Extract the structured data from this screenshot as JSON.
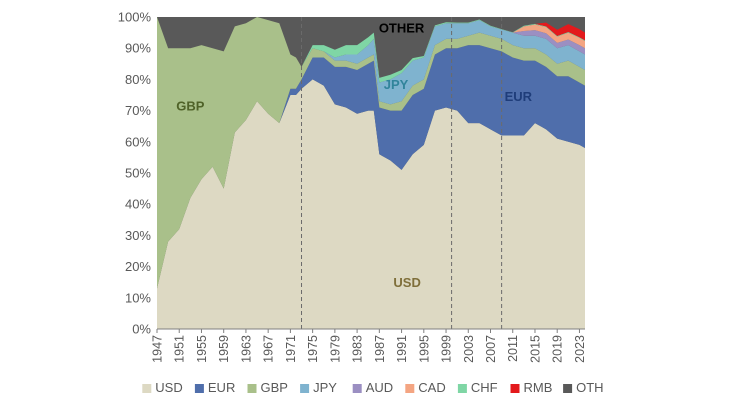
{
  "chart_data": {
    "type": "area",
    "stacked": true,
    "normalized_percent": true,
    "title": "",
    "xlabel": "",
    "ylabel": "",
    "ylim": [
      0,
      100
    ],
    "y_ticks": [
      0,
      10,
      20,
      30,
      40,
      50,
      60,
      70,
      80,
      90,
      100
    ],
    "y_tick_labels": [
      "0%",
      "10%",
      "20%",
      "30%",
      "40%",
      "50%",
      "60%",
      "70%",
      "80%",
      "90%",
      "100%"
    ],
    "x_tick_labels": [
      "1947",
      "1951",
      "1955",
      "1959",
      "1963",
      "1967",
      "1971",
      "1975",
      "1979",
      "1983",
      "1987",
      "1991",
      "1995",
      "1999",
      "2003",
      "2007",
      "2011",
      "2015",
      "2019",
      "2023"
    ],
    "xlim": [
      1947,
      2024
    ],
    "grid": false,
    "legend_position": "bottom",
    "vertical_reference_lines": [
      1973,
      2000,
      2009
    ],
    "colors": {
      "USD": "#ddd9c3",
      "EUR": "#4f6eab",
      "GBP": "#a9c08a",
      "JPY": "#7fb3cf",
      "AUD": "#9b8fc2",
      "CAD": "#f4a582",
      "CHF": "#7fd6a5",
      "RMB": "#e3191c",
      "OTH": "#595959"
    },
    "legend": [
      "USD",
      "EUR",
      "GBP",
      "JPY",
      "AUD",
      "CAD",
      "CHF",
      "RMB",
      "OTH"
    ],
    "inline_labels": [
      {
        "text": "GBP",
        "x": 1953,
        "y": 70,
        "series": "GBP",
        "color": "#4f6228"
      },
      {
        "text": "JPY",
        "x": 1990,
        "y": 77,
        "series": "JPY",
        "color": "#31849b"
      },
      {
        "text": "OTHER",
        "x": 1991,
        "y": 95,
        "series": "OTH",
        "color": "#000000"
      },
      {
        "text": "EUR",
        "x": 2012,
        "y": 73,
        "series": "EUR",
        "color": "#1f3d7a"
      },
      {
        "text": "USD",
        "x": 1992,
        "y": 13.5,
        "series": "USD",
        "color": "#7f6f3a"
      }
    ],
    "x": [
      1947,
      1949,
      1951,
      1953,
      1955,
      1957,
      1959,
      1961,
      1963,
      1965,
      1967,
      1969,
      1971,
      1972,
      1973,
      1975,
      1977,
      1979,
      1981,
      1983,
      1985,
      1986,
      1987,
      1989,
      1991,
      1993,
      1995,
      1997,
      1999,
      2001,
      2003,
      2005,
      2007,
      2009,
      2011,
      2013,
      2015,
      2017,
      2019,
      2021,
      2023,
      2024
    ],
    "series": [
      {
        "name": "USD",
        "values": [
          13,
          28,
          32,
          42,
          48,
          52,
          45,
          63,
          67,
          73,
          69,
          66,
          75,
          75,
          77,
          80,
          78,
          72,
          71,
          69,
          70,
          70,
          56,
          54,
          51,
          56,
          59,
          70,
          71,
          70,
          66,
          66,
          64,
          62,
          62,
          62,
          66,
          64,
          61,
          60,
          59,
          58
        ]
      },
      {
        "name": "EUR",
        "values": [
          0,
          0,
          0,
          0,
          0,
          0,
          0,
          0,
          0,
          0,
          0,
          0,
          2,
          2,
          3,
          7,
          9,
          12,
          13,
          14,
          15,
          16,
          15,
          16,
          19,
          19,
          18,
          18,
          19,
          20,
          25,
          25,
          26,
          27,
          25,
          24,
          20,
          20,
          20,
          21,
          20,
          20
        ]
      },
      {
        "name": "GBP",
        "values": [
          87,
          62,
          58,
          48,
          43,
          38,
          44,
          34,
          31,
          27,
          30,
          32,
          11,
          10,
          4,
          3,
          2,
          2,
          2,
          2,
          2,
          2,
          2,
          2,
          3,
          3,
          3,
          3,
          3,
          3,
          3,
          4,
          4,
          4,
          4,
          4,
          4,
          4,
          4,
          5,
          5,
          5
        ]
      },
      {
        "name": "JPY",
        "values": [
          0,
          0,
          0,
          0,
          0,
          0,
          0,
          0,
          0,
          0,
          0,
          0,
          0,
          0,
          0,
          0,
          0,
          1,
          2,
          3,
          4,
          5,
          6,
          8,
          9,
          8,
          7,
          6,
          5,
          5,
          4,
          4,
          3,
          3,
          4,
          4,
          4,
          5,
          5,
          5,
          5,
          5
        ]
      },
      {
        "name": "AUD",
        "values": [
          0,
          0,
          0,
          0,
          0,
          0,
          0,
          0,
          0,
          0,
          0,
          0,
          0,
          0,
          0,
          0,
          0,
          0,
          0,
          0,
          0,
          0,
          0,
          0,
          0,
          0,
          0,
          0,
          0,
          0,
          0,
          0,
          0,
          0,
          0,
          1.5,
          1.8,
          1.8,
          1.7,
          1.8,
          2,
          2
        ]
      },
      {
        "name": "CAD",
        "values": [
          0,
          0,
          0,
          0,
          0,
          0,
          0,
          0,
          0,
          0,
          0,
          0,
          0,
          0,
          0,
          0,
          0,
          0,
          0,
          0,
          0,
          0,
          0,
          0,
          0,
          0,
          0,
          0,
          0,
          0,
          0,
          0,
          0,
          0,
          0,
          1.5,
          1.8,
          2,
          2,
          2.2,
          2.3,
          2.3
        ]
      },
      {
        "name": "CHF",
        "values": [
          0,
          0,
          0,
          0,
          0,
          0,
          0,
          0,
          0,
          0,
          0,
          0,
          0,
          0,
          0,
          1,
          2,
          2.5,
          3,
          3,
          2.5,
          2,
          1.5,
          1.5,
          1,
          0.8,
          0.5,
          0.3,
          0.3,
          0.2,
          0.2,
          0.2,
          0.2,
          0.1,
          0.1,
          0.2,
          0.2,
          0.2,
          0.2,
          0.2,
          0.2,
          0.2
        ]
      },
      {
        "name": "RMB",
        "values": [
          0,
          0,
          0,
          0,
          0,
          0,
          0,
          0,
          0,
          0,
          0,
          0,
          0,
          0,
          0,
          0,
          0,
          0,
          0,
          0,
          0,
          0,
          0,
          0,
          0,
          0,
          0,
          0,
          0,
          0,
          0,
          0,
          0,
          0,
          0,
          0,
          0,
          1.2,
          2,
          2.5,
          2.6,
          2.5
        ]
      }
    ]
  }
}
